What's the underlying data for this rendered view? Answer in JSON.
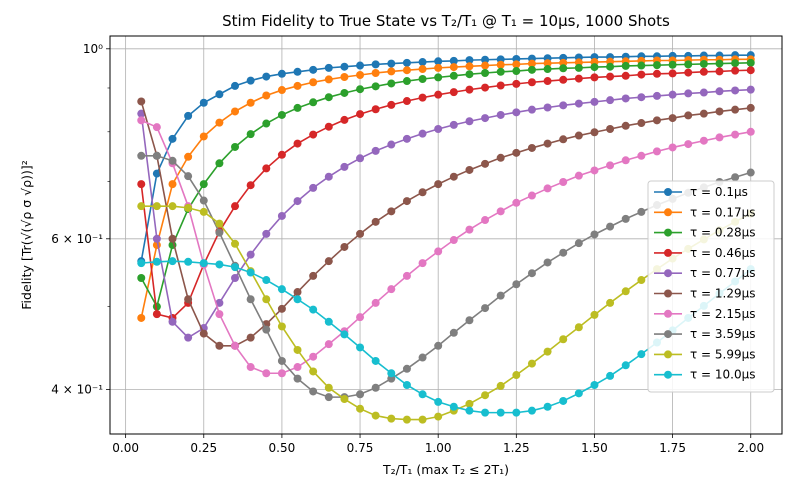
{
  "chart_data": {
    "type": "line",
    "title": "Stim Fidelity to True State vs T₂/T₁ @ T₁ = 10μs, 1000 Shots",
    "xlabel": "T₂/T₁ (max T₂ ≤ 2T₁)",
    "ylabel": "Fidelity [Tr(√(√ρ σ √ρ))]²",
    "yscale": "log",
    "xlim": [
      -0.05,
      2.1
    ],
    "ylim": [
      0.355,
      1.035
    ],
    "grid": true,
    "legend_position": "center-right",
    "x_ticks": [
      "0.00",
      "0.25",
      "0.50",
      "0.75",
      "1.00",
      "1.25",
      "1.50",
      "1.75",
      "2.00"
    ],
    "y_ticks": [
      "10⁰",
      "6 × 10⁻¹",
      "4 × 10⁻¹"
    ],
    "x": [
      0.05,
      0.1,
      0.15,
      0.2,
      0.25,
      0.3,
      0.35,
      0.4,
      0.45,
      0.5,
      0.55,
      0.6,
      0.65,
      0.7,
      0.75,
      0.8,
      0.85,
      0.9,
      0.95,
      1.0,
      1.05,
      1.1,
      1.15,
      1.2,
      1.25,
      1.3,
      1.35,
      1.4,
      1.45,
      1.5,
      1.55,
      1.6,
      1.65,
      1.7,
      1.75,
      1.8,
      1.85,
      1.9,
      1.95,
      2.0
    ],
    "series": [
      {
        "name": "τ = 0.1μs",
        "color": "#1f77b4",
        "values": [
          0.565,
          0.715,
          0.785,
          0.835,
          0.865,
          0.885,
          0.905,
          0.918,
          0.928,
          0.935,
          0.94,
          0.945,
          0.95,
          0.953,
          0.956,
          0.959,
          0.961,
          0.963,
          0.965,
          0.967,
          0.968,
          0.97,
          0.971,
          0.972,
          0.973,
          0.974,
          0.975,
          0.976,
          0.977,
          0.978,
          0.978,
          0.979,
          0.98,
          0.98,
          0.981,
          0.981,
          0.982,
          0.982,
          0.983,
          0.983
        ]
      },
      {
        "name": "τ = 0.17μs",
        "color": "#ff7f0e",
        "values": [
          0.485,
          0.59,
          0.695,
          0.748,
          0.79,
          0.82,
          0.845,
          0.865,
          0.882,
          0.895,
          0.905,
          0.914,
          0.921,
          0.927,
          0.932,
          0.937,
          0.941,
          0.944,
          0.947,
          0.95,
          0.952,
          0.954,
          0.956,
          0.958,
          0.959,
          0.961,
          0.962,
          0.963,
          0.964,
          0.965,
          0.966,
          0.967,
          0.968,
          0.969,
          0.969,
          0.97,
          0.971,
          0.971,
          0.972,
          0.972
        ]
      },
      {
        "name": "τ = 0.28μs",
        "color": "#2ca02c",
        "values": [
          0.54,
          0.5,
          0.59,
          0.65,
          0.695,
          0.735,
          0.768,
          0.795,
          0.818,
          0.837,
          0.853,
          0.866,
          0.878,
          0.888,
          0.897,
          0.904,
          0.911,
          0.917,
          0.922,
          0.926,
          0.93,
          0.934,
          0.937,
          0.94,
          0.942,
          0.945,
          0.947,
          0.949,
          0.95,
          0.952,
          0.953,
          0.955,
          0.956,
          0.957,
          0.958,
          0.959,
          0.96,
          0.961,
          0.962,
          0.963
        ]
      },
      {
        "name": "τ = 0.46μs",
        "color": "#d62728",
        "values": [
          0.695,
          0.49,
          0.485,
          0.505,
          0.56,
          0.612,
          0.655,
          0.693,
          0.725,
          0.752,
          0.775,
          0.794,
          0.811,
          0.826,
          0.839,
          0.85,
          0.86,
          0.869,
          0.877,
          0.884,
          0.89,
          0.896,
          0.901,
          0.906,
          0.91,
          0.914,
          0.917,
          0.92,
          0.923,
          0.926,
          0.928,
          0.93,
          0.933,
          0.935,
          0.936,
          0.938,
          0.94,
          0.941,
          0.943,
          0.944
        ]
      },
      {
        "name": "τ = 0.77μs",
        "color": "#9467bd",
        "values": [
          0.84,
          0.6,
          0.48,
          0.46,
          0.472,
          0.505,
          0.54,
          0.575,
          0.608,
          0.638,
          0.664,
          0.688,
          0.709,
          0.728,
          0.745,
          0.76,
          0.773,
          0.785,
          0.796,
          0.806,
          0.815,
          0.823,
          0.83,
          0.837,
          0.843,
          0.849,
          0.854,
          0.859,
          0.863,
          0.867,
          0.871,
          0.875,
          0.878,
          0.881,
          0.884,
          0.887,
          0.889,
          0.892,
          0.894,
          0.896
        ]
      },
      {
        "name": "τ = 1.29μs",
        "color": "#8c564b",
        "values": [
          0.868,
          0.75,
          0.6,
          0.51,
          0.465,
          0.45,
          0.45,
          0.46,
          0.477,
          0.497,
          0.52,
          0.543,
          0.565,
          0.587,
          0.608,
          0.628,
          0.646,
          0.664,
          0.68,
          0.695,
          0.709,
          0.722,
          0.734,
          0.746,
          0.756,
          0.766,
          0.775,
          0.784,
          0.792,
          0.799,
          0.806,
          0.813,
          0.819,
          0.825,
          0.83,
          0.836,
          0.84,
          0.845,
          0.849,
          0.853
        ]
      },
      {
        "name": "τ = 2.15μs",
        "color": "#e377c2",
        "values": [
          0.825,
          0.81,
          0.735,
          0.655,
          0.56,
          0.49,
          0.45,
          0.425,
          0.418,
          0.418,
          0.425,
          0.437,
          0.452,
          0.468,
          0.486,
          0.505,
          0.524,
          0.543,
          0.562,
          0.58,
          0.598,
          0.615,
          0.631,
          0.646,
          0.661,
          0.674,
          0.687,
          0.699,
          0.711,
          0.721,
          0.731,
          0.741,
          0.75,
          0.759,
          0.767,
          0.774,
          0.781,
          0.788,
          0.794,
          0.8
        ]
      },
      {
        "name": "τ = 3.59μs",
        "color": "#7f7f7f",
        "values": [
          0.75,
          0.75,
          0.74,
          0.71,
          0.665,
          0.61,
          0.558,
          0.51,
          0.47,
          0.432,
          0.412,
          0.398,
          0.392,
          0.392,
          0.395,
          0.402,
          0.412,
          0.423,
          0.436,
          0.45,
          0.466,
          0.482,
          0.498,
          0.515,
          0.531,
          0.547,
          0.563,
          0.578,
          0.593,
          0.607,
          0.62,
          0.633,
          0.645,
          0.657,
          0.668,
          0.679,
          0.689,
          0.699,
          0.708,
          0.717
        ]
      },
      {
        "name": "τ = 5.99μs",
        "color": "#bcbd22",
        "values": [
          0.655,
          0.655,
          0.655,
          0.652,
          0.645,
          0.625,
          0.592,
          0.55,
          0.51,
          0.474,
          0.445,
          0.42,
          0.402,
          0.39,
          0.38,
          0.373,
          0.37,
          0.369,
          0.369,
          0.372,
          0.378,
          0.385,
          0.394,
          0.404,
          0.416,
          0.429,
          0.443,
          0.458,
          0.473,
          0.489,
          0.505,
          0.521,
          0.537,
          0.553,
          0.569,
          0.584,
          0.599,
          0.614,
          0.628,
          0.642
        ]
      },
      {
        "name": "τ = 10.0μs",
        "color": "#17becf",
        "values": [
          0.562,
          0.564,
          0.565,
          0.564,
          0.562,
          0.56,
          0.556,
          0.548,
          0.537,
          0.524,
          0.51,
          0.496,
          0.48,
          0.464,
          0.448,
          0.432,
          0.418,
          0.405,
          0.395,
          0.387,
          0.382,
          0.378,
          0.376,
          0.376,
          0.376,
          0.378,
          0.382,
          0.388,
          0.396,
          0.405,
          0.415,
          0.427,
          0.44,
          0.454,
          0.469,
          0.485,
          0.501,
          0.518,
          0.535,
          0.553
        ]
      }
    ]
  }
}
